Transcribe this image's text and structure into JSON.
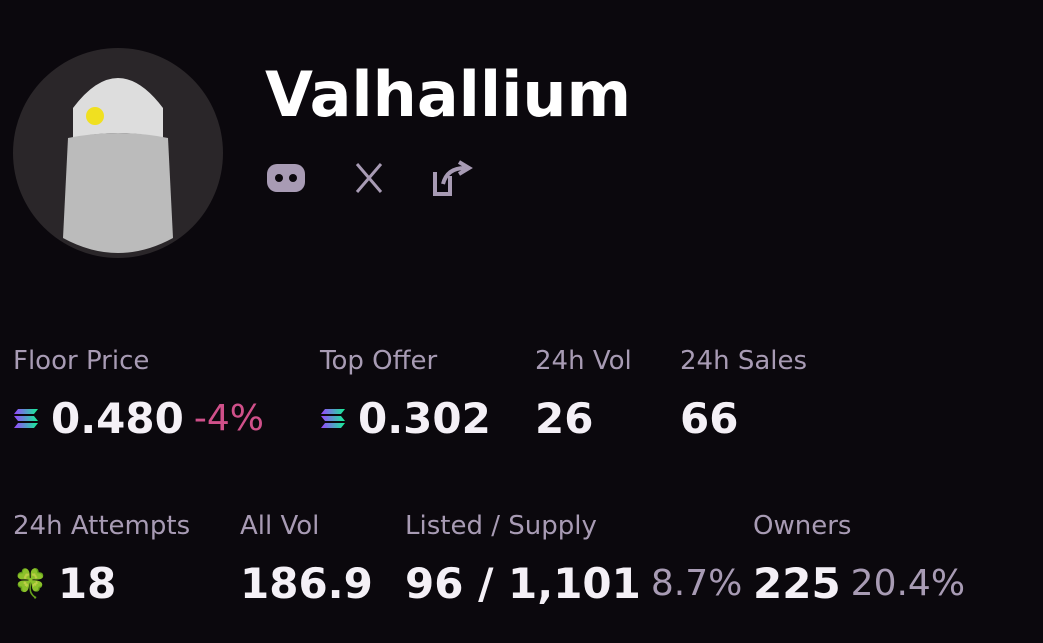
{
  "header": {
    "title": "Valhallium"
  },
  "stats_row1": [
    {
      "label": "Floor Price",
      "value": "0.480",
      "change": "-4%"
    },
    {
      "label": "Top Offer",
      "value": "0.302"
    },
    {
      "label": "24h Vol",
      "value": "26"
    },
    {
      "label": "24h Sales",
      "value": "66"
    }
  ],
  "stats_row2": [
    {
      "label": "24h Attempts",
      "value": "18"
    },
    {
      "label": "All Vol",
      "value": "186.9"
    },
    {
      "label": "Listed / Supply",
      "value": "96 / 1,101",
      "extra": "8.7%"
    },
    {
      "label": "Owners",
      "value": "225",
      "extra": "20.4%"
    }
  ]
}
